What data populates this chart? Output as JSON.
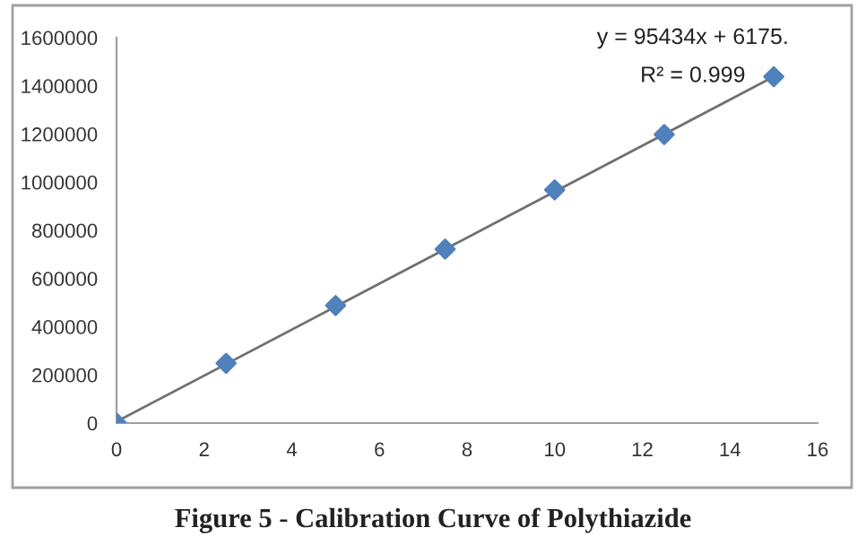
{
  "chart_data": {
    "type": "scatter",
    "series": [
      {
        "color": "#4f81bd",
        "marker": "diamond",
        "x": [
          0,
          2.5,
          5,
          7.5,
          10,
          12.5,
          15
        ],
        "values": [
          0,
          248000,
          488000,
          722000,
          968000,
          1198000,
          1438000
        ]
      },
      {
        "type": "line",
        "color": "#707070",
        "marker": "none",
        "line_style": "solid",
        "x": [
          0,
          15
        ],
        "values": [
          6000,
          1438000
        ]
      }
    ],
    "xlim": [
      0,
      16
    ],
    "xticks": [
      0,
      2,
      4,
      6,
      8,
      10,
      12,
      14,
      16
    ],
    "ylim": [
      0,
      1600000
    ],
    "yticks": [
      0,
      200000,
      400000,
      600000,
      800000,
      1000000,
      1200000,
      1400000,
      1600000
    ],
    "grid": false,
    "legend": false,
    "annotations": [
      "y = 95434x + 6175.",
      "R² = 0.999",
      "Figure 5 - Calibration Curve of Polythiazide"
    ]
  }
}
